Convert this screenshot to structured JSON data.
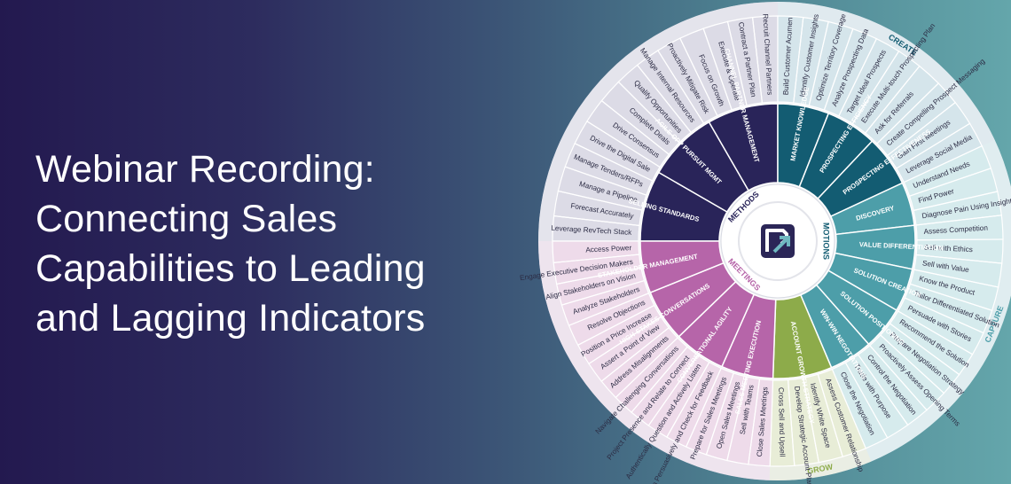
{
  "title": {
    "line1": "Webinar Recording:",
    "line2": "Connecting Sales",
    "line3": "Capabilities to Leading",
    "line4": "and Lagging Indicators"
  },
  "wheel": {
    "hub_icon": "r-arrow-logo-icon",
    "quadrants": [
      {
        "key": "methods",
        "label": "METHODS",
        "outer_label": "",
        "color": "#292459",
        "light": "#dcdbe6",
        "capabilities": [
          "SELLING STANDARDS",
          "AGILE OPP PURSUIT MGMT",
          "CHANNEL PARTNER MANAGEMENT"
        ],
        "skills": [
          "Leverage RevTech Stack",
          "Forecast Accurately",
          "Manage a Pipeline",
          "Manage Tenders/RFPs",
          "Drive the Digital Sale",
          "Drive Consensus",
          "Complete Deals",
          "Qualify Opportunities",
          "Manage Internal Resources",
          "Proactively Mitigate Risk",
          "Focus on Growth",
          "Execute & Operate",
          "Contract a Partner Plan",
          "Recruit Channel Partners"
        ]
      },
      {
        "key": "create",
        "label": "",
        "outer_label": "CREATE",
        "color": "#135c72",
        "light": "#d5e5eb",
        "capabilities": [
          "MARKET KNOWLEDGE",
          "PROSPECTING EFFICIENCY",
          "PROSPECTING EFFECTIVENESS"
        ],
        "skills": [
          "Build Customer Acumen",
          "Identify Customer Insights",
          "Optimize Territory Coverage",
          "Analyze Prospecting Data",
          "Target Ideal Prospects",
          "Execute Multi-touch Prospecting Plan",
          "Ask for Referrals",
          "Create Compelling Prospect Messaging",
          "Gain First Meetings",
          "Leverage Social Media"
        ]
      },
      {
        "key": "capture",
        "label": "MOTIONS",
        "outer_label": "CAPTURE",
        "color": "#4d9ea9",
        "light": "#d6ebed",
        "capabilities": [
          "DISCOVERY",
          "VALUE DIFFERENTIATION",
          "SOLUTION CREATION",
          "SOLUTION POSITIONING",
          "WIN-WIN NEGOTIATIONS"
        ],
        "skills": [
          "Understand Needs",
          "Find Power",
          "Diagnose Pain Using Insights",
          "Assess Competition",
          "Sell with Ethics",
          "Sell with Value",
          "Know the Product",
          "Tailor Differentiated Solution",
          "Persuade with Stories",
          "Recommend the Solution",
          "Prepare Negotiation Strategy",
          "Proactively Assess Opening Terms",
          "Control the Negotiation",
          "Trade with Purpose",
          "Close the Negotiation"
        ]
      },
      {
        "key": "grow",
        "label": "",
        "outer_label": "GROW",
        "color": "#8dab4a",
        "light": "#e8edd7",
        "capabilities": [
          "ACCOUNT GROWTH STRATEGY"
        ],
        "skills": [
          "Assess Customer Relationship",
          "Identify White Space",
          "Develop Strategic Account Plans",
          "Cross Sell and Upsell"
        ]
      },
      {
        "key": "meetings",
        "label": "MEETINGS",
        "outer_label": "",
        "color": "#b665a9",
        "light": "#eedbea",
        "capabilities": [
          "SALES MEETING EXECUTION",
          "CONVERSATIONAL AGILITY",
          "HIGH-STAKES CONVERSATIONS",
          "STAKEHOLDER MANAGEMENT"
        ],
        "skills": [
          "Close Sales Meetings",
          "Sell with Teams",
          "Open Sales Meetings",
          "Prepare for Sales Meetings",
          "Position Persuasively and Check for Feedback",
          "Authentically Question and Actively Listen",
          "Project Presence and Relate to Connect",
          "Navigate Challenging Conversations",
          "Address Misalignments",
          "Assert a Point of View",
          "Position a Price Increase",
          "Resolve Objections",
          "Analyze Stakeholders",
          "Align Stakeholders on Vision",
          "Engage Executive Decision Makers",
          "Access Power"
        ]
      }
    ]
  }
}
